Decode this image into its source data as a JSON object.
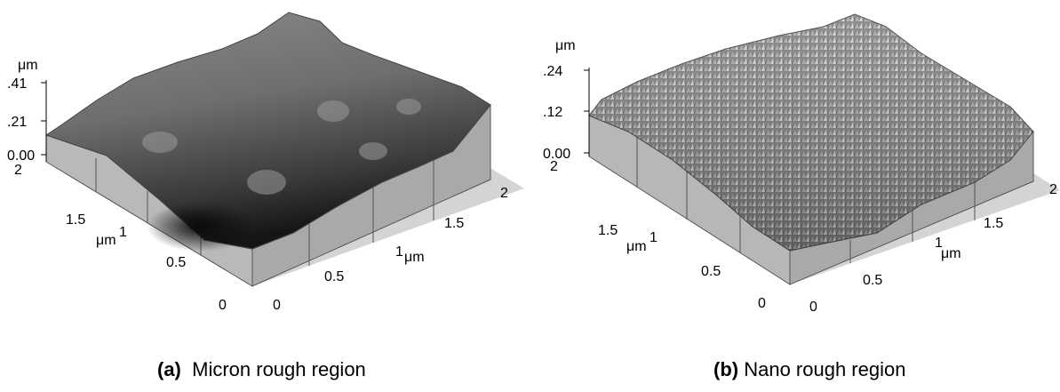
{
  "figure": {
    "panels": [
      {
        "id": "a",
        "caption_tag": "(a)",
        "caption_text": "Micron rough region",
        "z_unit": "μm",
        "z_ticks": [
          ".41",
          ".21",
          "0.00"
        ],
        "y_unit": "μm",
        "y_ticks": [
          "2",
          "1.5",
          "1",
          "0.5",
          "0"
        ],
        "x_unit": "μm",
        "x_ticks": [
          "0",
          "0.5",
          "1",
          "1.5",
          "2"
        ],
        "surface": "micron-rough"
      },
      {
        "id": "b",
        "caption_tag": "(b)",
        "caption_text": "Nano rough region",
        "z_unit": "μm",
        "z_ticks": [
          ".24",
          ".12",
          "0.00"
        ],
        "y_unit": "μm",
        "y_ticks": [
          "2",
          "1.5",
          "1",
          "0.5",
          "0"
        ],
        "x_unit": "μm",
        "x_ticks": [
          "0",
          "0.5",
          "1",
          "1.5",
          "2"
        ],
        "surface": "nano-rough"
      }
    ]
  }
}
